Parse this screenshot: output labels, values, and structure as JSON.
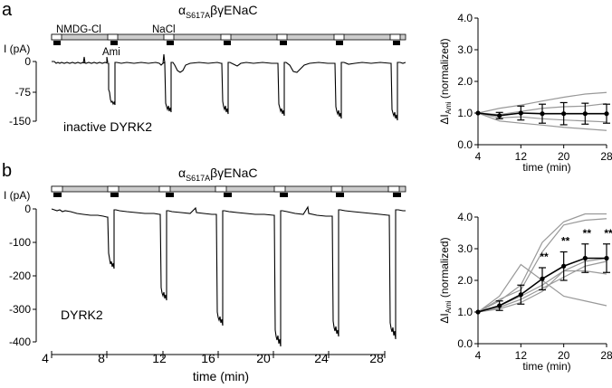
{
  "panel_a": {
    "letter": "a",
    "construct": {
      "alpha": "α",
      "sub": "S617A",
      "rest": "βγENaC"
    },
    "solution_labels": [
      "NMDG-Cl",
      "NaCl",
      "Ami"
    ],
    "ylabel": "I (pA)",
    "trace_label": "inactive DYRK2",
    "current_ticks": [
      "0",
      "-75",
      "-150"
    ]
  },
  "panel_b": {
    "letter": "b",
    "construct": {
      "alpha": "α",
      "sub": "S617A",
      "rest": "βγENaC"
    },
    "ylabel": "I (pA)",
    "trace_label": "DYRK2",
    "current_ticks": [
      "0",
      "-100",
      "-200",
      "-300",
      "-400"
    ],
    "time_ticks": [
      "4",
      "8",
      "12",
      "16",
      "20",
      "24",
      "28"
    ],
    "xlabel": "time (min)"
  },
  "colors": {
    "trace": "#000000",
    "individual": "#999999",
    "bar_fill": "#cccccc"
  },
  "chart_data": [
    {
      "type": "line",
      "panel": "a",
      "title": "",
      "xlabel": "time (min)",
      "ylabel": {
        "main": "ΔI",
        "sub": "Ami",
        "rest": " (normalized)"
      },
      "xlim": [
        4,
        28
      ],
      "ylim": [
        0,
        4
      ],
      "xticks": [
        4,
        12,
        20,
        28
      ],
      "yticks": [
        "0.0",
        "1.0",
        "2.0",
        "3.0",
        "4.0"
      ],
      "x": [
        4,
        8,
        12,
        16,
        20,
        24,
        28
      ],
      "series": [
        {
          "values": [
            1.0,
            0.92,
            1.0,
            0.98,
            0.98,
            0.98,
            0.98
          ],
          "err": [
            0,
            0.1,
            0.22,
            0.3,
            0.35,
            0.33,
            0.3
          ]
        }
      ],
      "individual": [
        [
          1.0,
          1.15,
          1.25,
          1.38,
          1.5,
          1.6,
          1.65
        ],
        [
          1.0,
          0.95,
          1.05,
          1.15,
          1.2,
          1.22,
          1.3
        ],
        [
          1.0,
          0.85,
          0.88,
          0.82,
          0.78,
          0.75,
          0.72
        ],
        [
          1.0,
          0.75,
          0.68,
          0.62,
          0.55,
          0.5,
          0.45
        ]
      ],
      "significance": []
    },
    {
      "type": "line",
      "panel": "b",
      "title": "",
      "xlabel": "time (min)",
      "ylabel": {
        "main": "ΔI",
        "sub": "Ami",
        "rest": " (normalized)"
      },
      "xlim": [
        4,
        28
      ],
      "ylim": [
        0,
        4
      ],
      "xticks": [
        4,
        12,
        20,
        28
      ],
      "yticks": [
        "0.0",
        "1.0",
        "2.0",
        "3.0",
        "4.0"
      ],
      "x": [
        4,
        8,
        12,
        16,
        20,
        24,
        28
      ],
      "series": [
        {
          "values": [
            1.0,
            1.2,
            1.55,
            2.05,
            2.45,
            2.7,
            2.7
          ],
          "err": [
            0,
            0.15,
            0.3,
            0.35,
            0.45,
            0.45,
            0.45
          ]
        }
      ],
      "individual": [
        [
          1.0,
          1.1,
          1.3,
          1.65,
          2.3,
          2.6,
          2.7
        ],
        [
          1.0,
          1.2,
          1.5,
          1.85,
          2.3,
          2.3,
          2.2
        ],
        [
          1.0,
          1.5,
          2.5,
          2.0,
          1.5,
          1.35,
          1.2
        ],
        [
          1.0,
          1.35,
          1.85,
          3.2,
          3.85,
          4.1,
          4.1
        ],
        [
          1.0,
          1.4,
          1.7,
          2.9,
          3.75,
          3.9,
          3.95
        ],
        [
          1.0,
          1.15,
          1.4,
          1.75,
          2.1,
          2.45,
          2.6
        ]
      ],
      "significance": [
        {
          "x": 16,
          "label": "**"
        },
        {
          "x": 20,
          "label": "**"
        },
        {
          "x": 24,
          "label": "**"
        },
        {
          "x": 28,
          "label": "**"
        }
      ]
    }
  ]
}
